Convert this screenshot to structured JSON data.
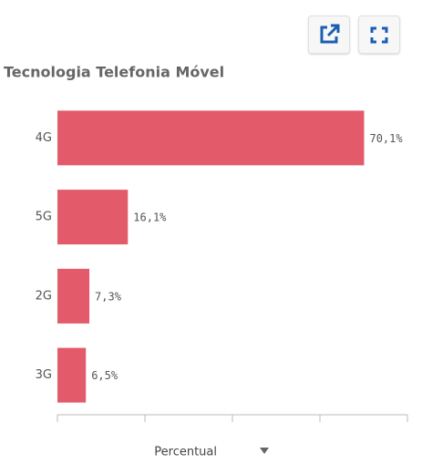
{
  "chart_data": {
    "type": "hbar",
    "title": "Tecnologia Telefonia Móvel",
    "categories": [
      "4G",
      "5G",
      "2G",
      "3G"
    ],
    "values": [
      70.1,
      16.1,
      7.3,
      6.5
    ],
    "value_labels": [
      "70,1%",
      "16,1%",
      "7,3%",
      "6,5%"
    ],
    "color": "#e35b6a",
    "xlim": [
      0,
      80
    ],
    "xticks": [
      0,
      20,
      40,
      60,
      80
    ],
    "x_label": "Percentual"
  }
}
